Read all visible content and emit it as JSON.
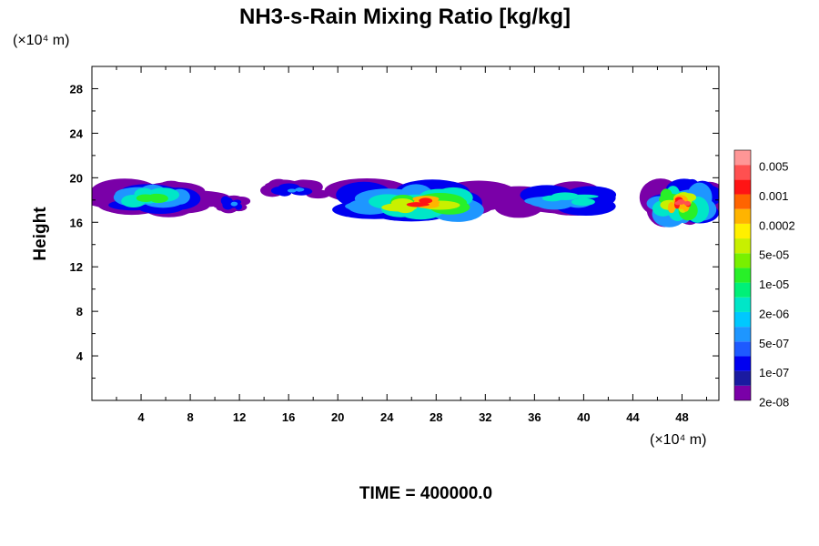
{
  "chart_data": {
    "type": "heatmap",
    "title": "NH3-s-Rain Mixing Ratio [kg/kg]",
    "ylabel": "Height",
    "xlabel": "",
    "x_unit_label": "(×10⁴ m)",
    "y_unit_label": "(×10⁴ m)",
    "time_label": "TIME = 400000.0",
    "xlim": [
      0,
      51
    ],
    "ylim": [
      0,
      30
    ],
    "xticks": [
      "4",
      "8",
      "12",
      "16",
      "20",
      "24",
      "28",
      "32",
      "36",
      "40",
      "44",
      "48"
    ],
    "xtick_values": [
      4,
      8,
      12,
      16,
      20,
      24,
      28,
      32,
      36,
      40,
      44,
      48
    ],
    "yticks": [
      "4",
      "8",
      "12",
      "16",
      "20",
      "24",
      "28"
    ],
    "ytick_values": [
      4,
      8,
      12,
      16,
      20,
      24,
      28
    ],
    "colorbar": {
      "labels": [
        "0.005",
        "0.001",
        "0.0002",
        "5e-05",
        "1e-05",
        "2e-06",
        "5e-07",
        "1e-07",
        "2e-08"
      ],
      "colors": [
        "#7a00a8",
        "#1a1aa0",
        "#0000f0",
        "#1e5aff",
        "#1e96ff",
        "#00c8ff",
        "#00e6c8",
        "#00f078",
        "#28f028",
        "#78f000",
        "#c8f000",
        "#fff000",
        "#ffb400",
        "#ff6400",
        "#ff1414",
        "#ff5050",
        "#ff9696"
      ]
    },
    "regions": [
      {
        "x0": 0,
        "x1": 10,
        "y0": 16.5,
        "y1": 19.8,
        "peak_level": 9
      },
      {
        "x0": 10,
        "x1": 13,
        "y0": 16.9,
        "y1": 18.5,
        "peak_level": 4
      },
      {
        "x0": 14,
        "x1": 19,
        "y0": 18.2,
        "y1": 19.7,
        "peak_level": 4
      },
      {
        "x0": 20,
        "x1": 33,
        "y0": 16.0,
        "y1": 19.6,
        "peak_level": 14
      },
      {
        "x0": 33,
        "x1": 44,
        "y0": 16.7,
        "y1": 19.4,
        "peak_level": 7
      },
      {
        "x0": 45,
        "x1": 51,
        "y0": 15.5,
        "y1": 20.0,
        "peak_level": 15
      }
    ]
  }
}
